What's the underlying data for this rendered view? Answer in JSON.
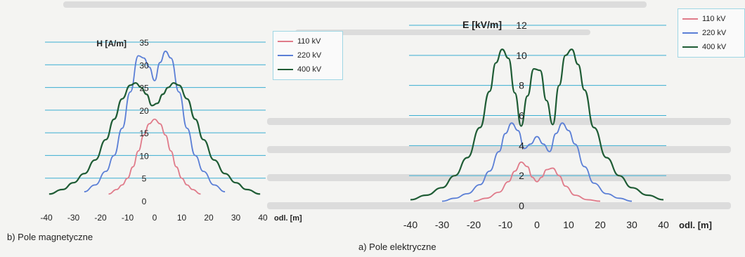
{
  "chart_data": [
    {
      "type": "line",
      "ylabel": "H [A/m]",
      "xlabel": "odl. [m]",
      "caption": "b) Pole magnetyczne",
      "xlim": [
        -40,
        40
      ],
      "ylim": [
        0,
        35
      ],
      "xticks": [
        -40,
        -30,
        -20,
        -10,
        0,
        10,
        20,
        30,
        40
      ],
      "yticks": [
        0,
        5,
        10,
        15,
        20,
        25,
        30,
        35
      ],
      "legend_position": "top-right",
      "grid": "horizontal",
      "series": [
        {
          "name": "110 kV",
          "color": "#e07b8a",
          "x": [
            -17,
            -14,
            -12,
            -10,
            -8,
            -6,
            -4,
            -2,
            0,
            2,
            4,
            6,
            8,
            10,
            12,
            14,
            17
          ],
          "y": [
            1.5,
            2.5,
            3.5,
            5.0,
            7.5,
            11.0,
            14.5,
            17.0,
            18.0,
            17.0,
            14.5,
            11.0,
            7.5,
            5.0,
            3.5,
            2.5,
            1.5
          ]
        },
        {
          "name": "220 kV",
          "color": "#5b7fd6",
          "x": [
            -26,
            -22,
            -18,
            -15,
            -12,
            -9,
            -6,
            -4,
            -2,
            0,
            2,
            4,
            6,
            9,
            12,
            15,
            18,
            22,
            26
          ],
          "y": [
            2.0,
            3.5,
            6.5,
            10.0,
            16.0,
            24.0,
            32.0,
            31.5,
            29.5,
            26.5,
            30.5,
            33.0,
            31.5,
            24.0,
            16.0,
            10.0,
            6.5,
            3.5,
            2.0
          ]
        },
        {
          "name": "400 kV",
          "color": "#1f5c35",
          "x": [
            -39,
            -34,
            -30,
            -26,
            -22,
            -18,
            -15,
            -12,
            -9,
            -7,
            -5,
            -3,
            -1,
            1,
            3,
            5,
            7,
            9,
            12,
            15,
            18,
            22,
            26,
            30,
            34,
            39
          ],
          "y": [
            1.5,
            2.5,
            4.0,
            6.0,
            9.0,
            13.5,
            18.0,
            22.5,
            25.5,
            26.0,
            25.0,
            23.5,
            21.0,
            21.5,
            23.5,
            25.0,
            26.0,
            25.5,
            22.5,
            18.0,
            13.5,
            9.0,
            6.0,
            4.0,
            2.5,
            1.5
          ]
        }
      ]
    },
    {
      "type": "line",
      "ylabel": "E [kV/m]",
      "xlabel": "odl. [m]",
      "caption": "a) Pole elektryczne",
      "xlim": [
        -40,
        40
      ],
      "ylim": [
        0,
        12
      ],
      "xticks": [
        -40,
        -30,
        -20,
        -10,
        0,
        10,
        20,
        30,
        40
      ],
      "yticks": [
        0,
        2,
        4,
        6,
        8,
        10,
        12
      ],
      "legend_position": "top-right",
      "grid": "horizontal",
      "series": [
        {
          "name": "110 kV",
          "color": "#e07b8a",
          "x": [
            -20,
            -16,
            -12,
            -9,
            -7,
            -5,
            -3,
            -1.5,
            0,
            1.5,
            3,
            5,
            7,
            9,
            12,
            16,
            20
          ],
          "y": [
            0.3,
            0.5,
            0.9,
            1.6,
            2.3,
            2.9,
            2.6,
            1.9,
            1.6,
            1.9,
            2.4,
            2.5,
            2.0,
            1.3,
            0.7,
            0.4,
            0.3
          ]
        },
        {
          "name": "220 kV",
          "color": "#5b7fd6",
          "x": [
            -30,
            -26,
            -22,
            -18,
            -15,
            -12,
            -10,
            -8,
            -6,
            -4,
            -2,
            0,
            2,
            4,
            6,
            8,
            10,
            12,
            15,
            18,
            22,
            26,
            30
          ],
          "y": [
            0.3,
            0.5,
            0.8,
            1.4,
            2.3,
            3.6,
            4.8,
            5.5,
            5.0,
            3.8,
            4.1,
            4.6,
            4.1,
            3.6,
            4.8,
            5.5,
            5.0,
            4.1,
            2.6,
            1.5,
            0.8,
            0.5,
            0.3
          ]
        },
        {
          "name": "400 kV",
          "color": "#1f5c35",
          "x": [
            -40,
            -35,
            -30,
            -26,
            -22,
            -18,
            -15,
            -13,
            -11,
            -9,
            -7,
            -5,
            -3,
            -1,
            1,
            3,
            5,
            7,
            9,
            11,
            13,
            15,
            18,
            22,
            26,
            30,
            35,
            40
          ],
          "y": [
            0.4,
            0.7,
            1.2,
            2.0,
            3.2,
            5.2,
            7.6,
            9.5,
            10.4,
            9.8,
            7.5,
            5.3,
            7.3,
            9.1,
            9.0,
            7.0,
            5.4,
            8.0,
            10.0,
            10.4,
            9.4,
            7.7,
            5.2,
            3.2,
            2.0,
            1.2,
            0.7,
            0.4
          ]
        }
      ]
    }
  ]
}
